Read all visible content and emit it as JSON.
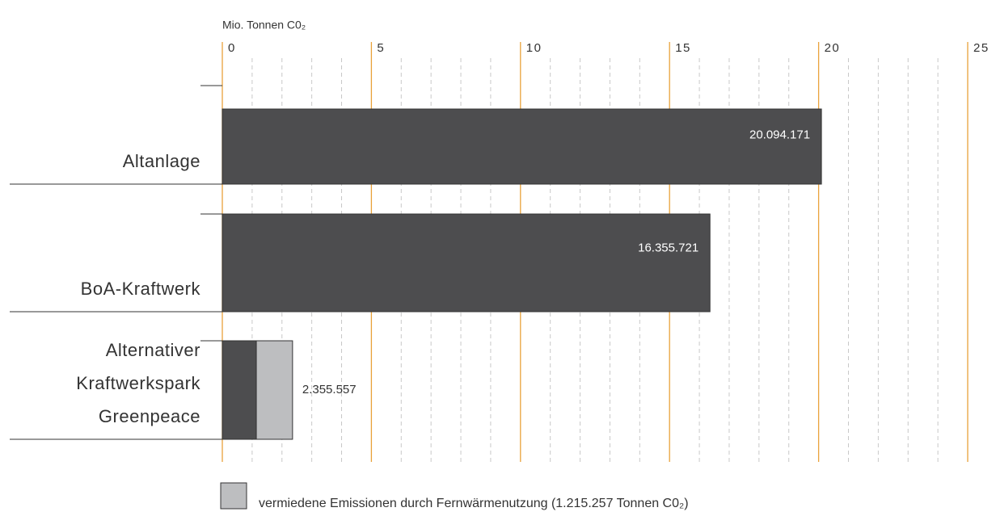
{
  "chart_data": {
    "type": "stacked_barh",
    "xlabel": "Mio. Tonnen C0₂",
    "categories": [
      "Altanlage",
      "BoA-Kraftwerk",
      "Alternativer\nKraftwerkspark\nGreenpeace"
    ],
    "series": [
      {
        "color": "#4d4d4f",
        "values": [
          20.094171,
          16.355721,
          1.1403
        ],
        "value_labels": [
          "20.094.171",
          "16.355.721",
          null
        ]
      },
      {
        "name": "vermiedene Emissionen durch Fernwärmenutzung (1.215.257 Tonnen C0₂)",
        "color": "#bdbec0",
        "values": [
          null,
          null,
          1.215257
        ]
      }
    ],
    "totals": [
      null,
      null,
      2.355557
    ],
    "total_labels": [
      null,
      null,
      "2.355.557"
    ],
    "xlim": [
      0,
      25
    ],
    "xticks": [
      0,
      5,
      10,
      15,
      20,
      25
    ],
    "xminorticks": [
      1,
      2,
      3,
      4,
      6,
      7,
      8,
      9,
      11,
      12,
      13,
      14,
      16,
      17,
      18,
      19,
      21,
      22,
      23,
      24
    ],
    "major_grid_color": "#e9a23b",
    "minor_grid_color": "#c8c8c8"
  }
}
